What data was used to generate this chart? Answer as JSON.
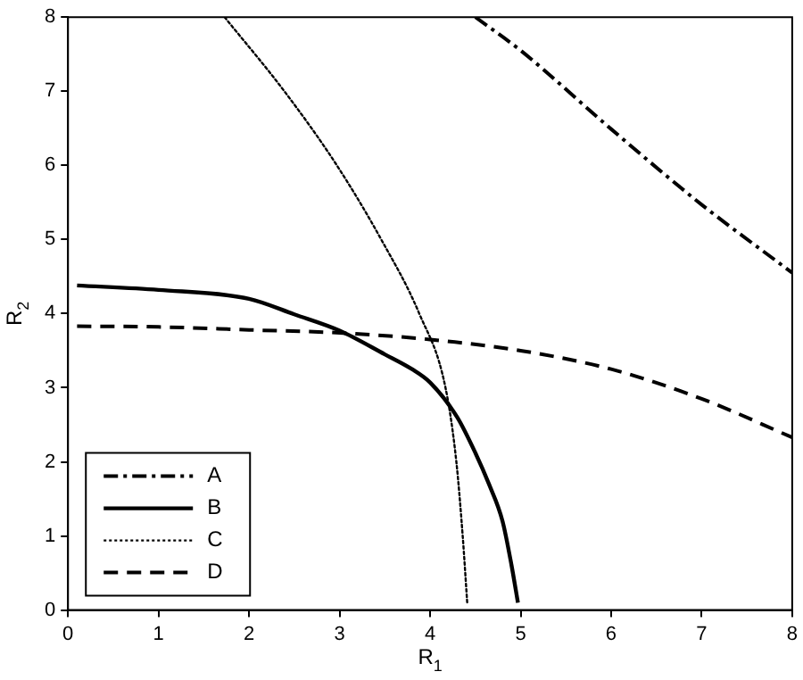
{
  "chart_data": {
    "type": "line",
    "xlabel": "R$_{1}$",
    "ylabel": "R$_{2}$",
    "xlim": [
      0,
      8
    ],
    "ylim": [
      0,
      8
    ],
    "xticks": [
      0,
      1,
      2,
      3,
      4,
      5,
      6,
      7,
      8
    ],
    "yticks": [
      0,
      1,
      2,
      3,
      4,
      5,
      6,
      7,
      8
    ],
    "grid": false,
    "legend": "bottom left",
    "marker": "none",
    "series": [
      {
        "name": "A",
        "color": "#000000",
        "line_style": "dashdot",
        "x": [
          4.5,
          5,
          6,
          7,
          8
        ],
        "values": [
          8,
          7.55,
          6.49,
          5.47,
          4.55
        ]
      },
      {
        "name": "B",
        "color": "#000000",
        "line_style": "solid",
        "x": [
          0.1,
          1,
          2,
          2.5,
          3,
          3.5,
          3.8,
          4,
          4.3,
          4.5,
          4.65,
          4.8,
          4.9,
          4.97
        ],
        "values": [
          4.38,
          4.32,
          4.2,
          3.99,
          3.77,
          3.45,
          3.25,
          3.07,
          2.6,
          2.12,
          1.7,
          1.2,
          0.6,
          0.1
        ]
      },
      {
        "name": "C",
        "color": "#000000",
        "line_style": "dotted",
        "x": [
          1.73,
          2.39,
          2.97,
          3.46,
          3.88,
          4.17,
          4.29,
          4.36,
          4.41
        ],
        "values": [
          8,
          7,
          6,
          5,
          4,
          3,
          2,
          1,
          0.1
        ]
      },
      {
        "name": "D",
        "color": "#000000",
        "line_style": "dashed",
        "x": [
          0.1,
          1,
          2,
          3,
          4,
          5,
          6,
          7,
          8
        ],
        "values": [
          3.83,
          3.82,
          3.78,
          3.74,
          3.65,
          3.5,
          3.25,
          2.85,
          2.33
        ]
      }
    ]
  }
}
